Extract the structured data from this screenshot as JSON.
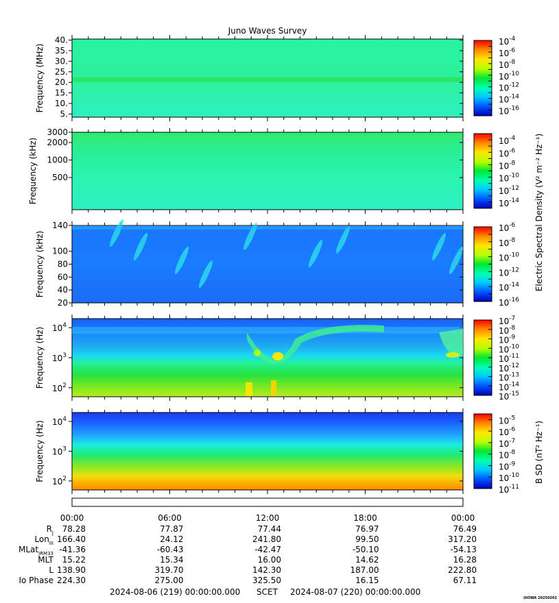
{
  "title": "Juno Waves Survey",
  "footer": {
    "start": "2024-08-06 (219) 00:00:00.000",
    "mid": "SCET",
    "end": "2024-08-07 (220) 00:00:00.000",
    "credit": "UIOWA 20250202"
  },
  "colorbar_labels": {
    "electric": "Electric Spectral Density (V² m⁻² Hz⁻¹)",
    "magnetic": "B SD (nT² Hz⁻¹)"
  },
  "time_ticks": [
    "00:00",
    "06:00",
    "12:00",
    "18:00",
    "00:00"
  ],
  "ephemeris": [
    {
      "label": "Rj",
      "values": [
        "78.28",
        "77.87",
        "77.44",
        "76.97",
        "76.49"
      ]
    },
    {
      "label": "LonIII",
      "values": [
        "166.40",
        "24.12",
        "241.80",
        "99.50",
        "317.20"
      ]
    },
    {
      "label": "MLatJRM33",
      "values": [
        "-41.36",
        "-60.43",
        "-42.47",
        "-50.10",
        "-54.13"
      ]
    },
    {
      "label": "MLT",
      "values": [
        "15.22",
        "15.34",
        "16.00",
        "14.62",
        "16.28"
      ]
    },
    {
      "label": "L",
      "values": [
        "138.90",
        "319.70",
        "142.30",
        "187.00",
        "222.80"
      ]
    },
    {
      "label": "Io Phase",
      "values": [
        "224.30",
        "275.00",
        "325.50",
        "16.15",
        "67.11"
      ]
    }
  ],
  "colors": {
    "colormap": [
      "#0000b4",
      "#0050ff",
      "#00c8ff",
      "#00ffb4",
      "#00e632",
      "#b4ff00",
      "#ffe600",
      "#ff8c00",
      "#ff0000"
    ]
  },
  "chart_data": [
    {
      "type": "heatmap",
      "ylabel": "Frequency (MHz)",
      "yscale": "linear",
      "ylim": [
        3.5,
        40.5
      ],
      "yticks": [
        "40.",
        "35.",
        "30.",
        "25.",
        "20.",
        "15.",
        "10.",
        "5."
      ],
      "colorbar": {
        "scale": "log",
        "range": [
          -17,
          -4
        ],
        "ticks": [
          "-4",
          "-6",
          "-8",
          "-10",
          "-12",
          "-14",
          "-16"
        ]
      }
    },
    {
      "type": "heatmap",
      "ylabel": "Frequency (kHz)",
      "yscale": "log",
      "ylim": [
        140,
        3000
      ],
      "yticks": [
        "3000",
        "2000",
        "1000",
        "500"
      ],
      "colorbar": {
        "scale": "log",
        "range": [
          -15,
          -3
        ],
        "ticks": [
          "-4",
          "-6",
          "-8",
          "-10",
          "-12",
          "-14"
        ]
      }
    },
    {
      "type": "heatmap",
      "ylabel": "Frequency (kHz)",
      "yscale": "linear",
      "ylim": [
        20,
        140
      ],
      "yticks": [
        "140",
        "100",
        "80",
        "60",
        "40",
        "20"
      ],
      "colorbar": {
        "scale": "log",
        "range": [
          -16,
          -6
        ],
        "ticks": [
          "-6",
          "-8",
          "-10",
          "-12",
          "-14",
          "-16"
        ]
      }
    },
    {
      "type": "heatmap",
      "ylabel": "Frequency (Hz)",
      "yscale": "log",
      "ylim": [
        50,
        20000
      ],
      "yticks": [
        "10^4",
        "10^3",
        "10^2"
      ],
      "colorbar": {
        "scale": "log",
        "range": [
          -15,
          -7
        ],
        "ticks": [
          "-7",
          "-8",
          "-9",
          "-10",
          "-11",
          "-12",
          "-13",
          "-14",
          "-15"
        ]
      }
    },
    {
      "type": "heatmap",
      "ylabel": "Frequency (Hz)",
      "yscale": "log",
      "ylim": [
        50,
        20000
      ],
      "yticks": [
        "10^4",
        "10^3",
        "10^2"
      ],
      "colorbar": {
        "scale": "log",
        "range": [
          -11,
          -4.5
        ],
        "ticks": [
          "-5",
          "-6",
          "-7",
          "-8",
          "-9",
          "-10",
          "-11"
        ]
      }
    }
  ]
}
